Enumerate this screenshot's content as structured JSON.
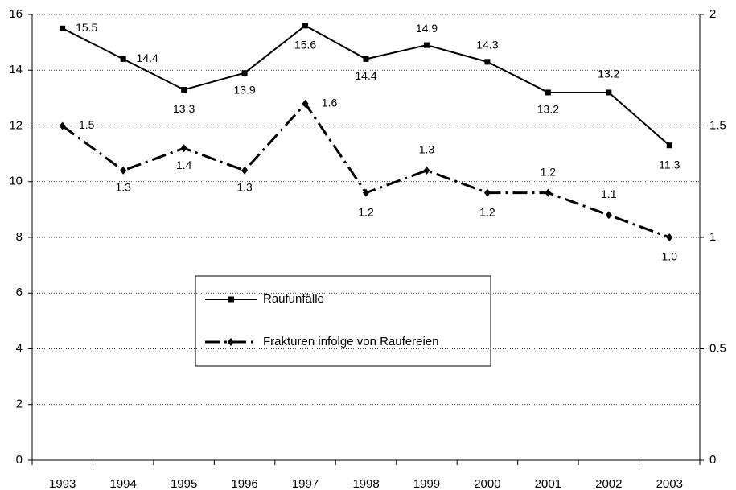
{
  "chart_data": {
    "type": "line",
    "categories": [
      "1993",
      "1994",
      "1995",
      "1996",
      "1997",
      "1998",
      "1999",
      "2000",
      "2001",
      "2002",
      "2003"
    ],
    "series": [
      {
        "name": "Raufunfälle",
        "color": "#000000",
        "values": [
          15.5,
          14.4,
          13.3,
          13.9,
          15.6,
          14.4,
          14.9,
          14.3,
          13.2,
          13.2,
          11.3
        ]
      },
      {
        "name": "Frakturen infolge von Raufereien",
        "color": "#000000",
        "axis": "y2",
        "values": [
          1.5,
          1.3,
          1.4,
          1.3,
          1.6,
          1.2,
          1.3,
          1.2,
          1.2,
          1.1,
          1.0
        ],
        "value_labels": [
          "1.5",
          "1.3",
          "1.4",
          "1.3",
          "1.6",
          "1.2",
          "1.3",
          "1.2",
          "1.2",
          "1.1",
          "1.0"
        ]
      }
    ],
    "ylim": [
      0,
      16
    ],
    "yticks": [
      0,
      2,
      4,
      6,
      8,
      10,
      12,
      14,
      16
    ],
    "y2lim": [
      0,
      2
    ],
    "y2ticks": [
      0,
      0.5,
      1,
      1.5,
      2
    ],
    "grid": true
  }
}
